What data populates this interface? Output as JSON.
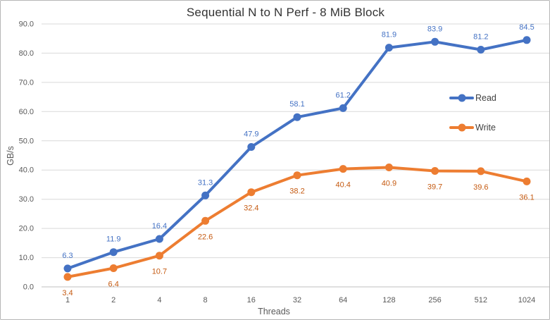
{
  "chart_data": {
    "type": "line",
    "title": "Sequential N to N Perf - 8 MiB Block",
    "xlabel": "Threads",
    "ylabel": "GB/s",
    "categories": [
      "1",
      "2",
      "4",
      "8",
      "16",
      "32",
      "64",
      "128",
      "256",
      "512",
      "1024"
    ],
    "series": [
      {
        "name": "Read",
        "color": "#4472C4",
        "label_color": "#4472C4",
        "label_position": "above",
        "values": [
          6.3,
          11.9,
          16.4,
          31.3,
          47.9,
          58.1,
          61.2,
          81.9,
          83.9,
          81.2,
          84.5
        ]
      },
      {
        "name": "Write",
        "color": "#ED7D31",
        "label_color": "#C55A11",
        "label_position": "below",
        "values": [
          3.4,
          6.4,
          10.7,
          22.6,
          32.4,
          38.2,
          40.4,
          40.9,
          39.7,
          39.6,
          36.1
        ]
      }
    ],
    "ylim": [
      0,
      90
    ],
    "ytick_step": 10,
    "ytick_labels": [
      "0.0",
      "10.0",
      "20.0",
      "30.0",
      "40.0",
      "50.0",
      "60.0",
      "70.0",
      "80.0",
      "90.0"
    ],
    "grid": "horizontal",
    "legend_position": "right-inside"
  },
  "colors": {
    "grid": "#D9D9D9",
    "axis_line": "#BFBFBF",
    "tick_text": "#595959",
    "title_text": "#333333",
    "legend_text": "#404040",
    "border": "#B6B6B6"
  }
}
